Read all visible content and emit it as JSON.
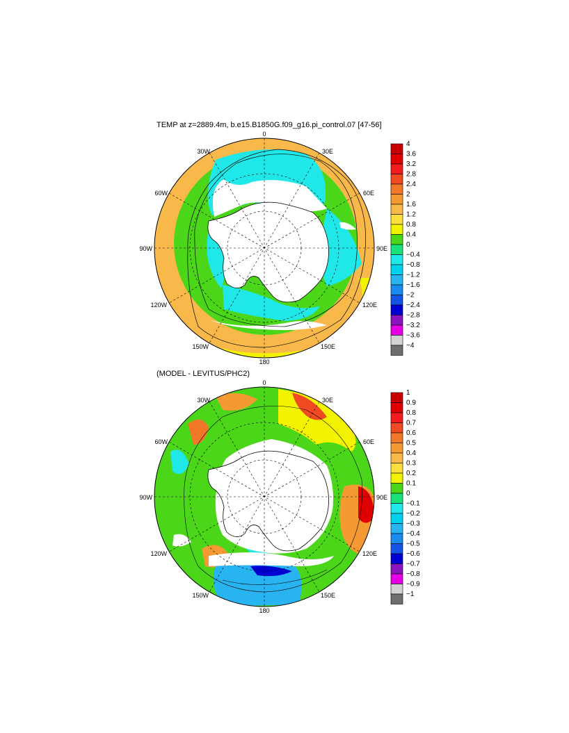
{
  "panels": [
    {
      "id": "temp",
      "title": "TEMP at z=2889.4m, b.e15.B1850G.f09_g16.pi_control.07 [47-56]",
      "longitude_labels": [
        "0",
        "30E",
        "60E",
        "90E",
        "120E",
        "150E",
        "180",
        "150W",
        "120W",
        "90W",
        "60W",
        "30W"
      ],
      "colorbar": {
        "labels": [
          "4",
          "3.6",
          "3.2",
          "2.8",
          "2.4",
          "2",
          "1.6",
          "1.2",
          "0.8",
          "0.4",
          "0",
          "−0.4",
          "−0.8",
          "−1.2",
          "−1.6",
          "−2",
          "−2.4",
          "−2.8",
          "−3.2",
          "−3.6",
          "−4"
        ],
        "colors": [
          "#c80000",
          "#e00000",
          "#f21c1c",
          "#f04a22",
          "#f07828",
          "#f59a32",
          "#f9b84a",
          "#fde040",
          "#f3f300",
          "#4cd61a",
          "#1ae07a",
          "#20e8e8",
          "#00d2ee",
          "#28b4f0",
          "#1a8cf0",
          "#1454e6",
          "#0000d2",
          "#8c14be",
          "#e600e6",
          "#d2d2d2",
          "#6e6e6e"
        ]
      }
    },
    {
      "id": "bias",
      "title": "(MODEL - LEVITUS/PHC2)",
      "longitude_labels": [
        "0",
        "30E",
        "60E",
        "90E",
        "120E",
        "150E",
        "180",
        "150W",
        "120W",
        "90W",
        "60W",
        "30W"
      ],
      "colorbar": {
        "labels": [
          "1",
          "0.9",
          "0.8",
          "0.7",
          "0.6",
          "0.5",
          "0.4",
          "0.3",
          "0.2",
          "0.1",
          "0",
          "−0.1",
          "−0.2",
          "−0.3",
          "−0.4",
          "−0.5",
          "−0.6",
          "−0.7",
          "−0.8",
          "−0.9",
          "−1"
        ],
        "colors": [
          "#c80000",
          "#e00000",
          "#f21c1c",
          "#f04a22",
          "#f07828",
          "#f59a32",
          "#f9b84a",
          "#fde040",
          "#f3f300",
          "#4cd61a",
          "#1ae07a",
          "#20e8e8",
          "#00d2ee",
          "#28b4f0",
          "#1a8cf0",
          "#1454e6",
          "#0000d2",
          "#8c14be",
          "#e600e6",
          "#d2d2d2",
          "#6e6e6e"
        ]
      }
    }
  ]
}
